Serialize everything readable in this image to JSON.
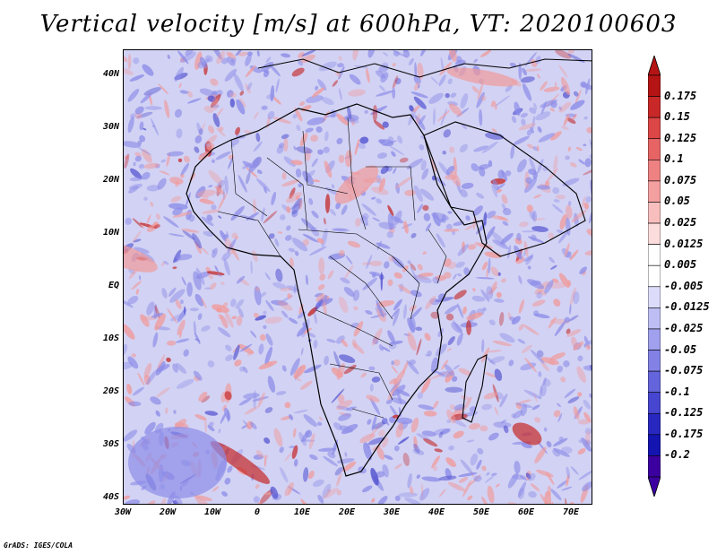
{
  "title": "Vertical velocity [m/s] at 600hPa, VT: 2020100603",
  "lat_labels": [
    "40N",
    "30N",
    "20N",
    "10N",
    "EQ",
    "10S",
    "20S",
    "30S",
    "40S"
  ],
  "lon_labels": [
    "30W",
    "20W",
    "10W",
    "0",
    "10E",
    "20E",
    "30E",
    "40E",
    "50E",
    "60E",
    "70E"
  ],
  "colorbar": {
    "levels": [
      "0.175",
      "0.15",
      "0.125",
      "0.1",
      "0.075",
      "0.05",
      "0.025",
      "0.0125",
      "0.005",
      "-0.005",
      "-0.0125",
      "-0.025",
      "-0.05",
      "-0.075",
      "-0.1",
      "-0.125",
      "-0.175",
      "-0.2"
    ],
    "colors": [
      "#b41414",
      "#c82828",
      "#dc4646",
      "#e66464",
      "#ee8282",
      "#f4a0a0",
      "#f8bebe",
      "#fcdcdc",
      "#ffffff",
      "#ffffff",
      "#dcdcfa",
      "#bebef4",
      "#a0a0ee",
      "#8282e6",
      "#6464dc",
      "#4646d0",
      "#2828c0",
      "#1414b0",
      "#3c00a0"
    ]
  },
  "footer": "GrADS: IGES/COLA",
  "palette": {
    "background": "#d2d2f4",
    "positive": "#f09a9a",
    "strong_positive": "#c42828",
    "negative": "#8c8ce8",
    "strong_negative": "#5050d0"
  }
}
